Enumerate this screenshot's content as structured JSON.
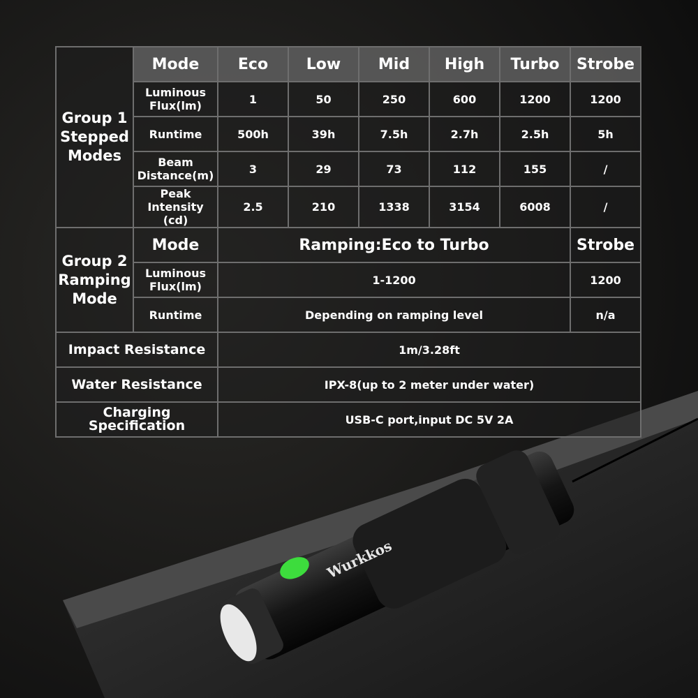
{
  "table": {
    "group1": {
      "title": "Group 1 Stepped Modes",
      "header": [
        "Mode",
        "Eco",
        "Low",
        "Mid",
        "High",
        "Turbo",
        "Strobe"
      ],
      "rows": [
        {
          "label": "Luminous Flux(lm)",
          "values": [
            "1",
            "50",
            "250",
            "600",
            "1200",
            "1200"
          ]
        },
        {
          "label": "Runtime",
          "values": [
            "500h",
            "39h",
            "7.5h",
            "2.7h",
            "2.5h",
            "5h"
          ]
        },
        {
          "label": "Beam Distance(m)",
          "values": [
            "3",
            "29",
            "73",
            "112",
            "155",
            "/"
          ]
        },
        {
          "label": "Peak Intensity (cd)",
          "values": [
            "2.5",
            "210",
            "1338",
            "3154",
            "6008",
            "/"
          ]
        }
      ]
    },
    "group2": {
      "title": "Group 2 Ramping Mode",
      "header": [
        "Mode",
        "Ramping:Eco to Turbo",
        "Strobe"
      ],
      "rows": [
        {
          "label": "Luminous Flux(lm)",
          "values": [
            "1-1200",
            "1200"
          ]
        },
        {
          "label": "Runtime",
          "values": [
            "Depending on ramping level",
            "n/a"
          ]
        }
      ]
    },
    "features": [
      {
        "label": "Impact Resistance",
        "value": "1m/3.28ft"
      },
      {
        "label": "Water Resistance",
        "value": "IPX-8(up to 2 meter under water)"
      },
      {
        "label": "Charging Specification",
        "value": "USB-C port,input DC 5V 2A"
      }
    ]
  },
  "product": {
    "brand_mark": "Wurkkos"
  },
  "colors": {
    "grid": "#6e6e6e",
    "header_bg": "#5f5f5f",
    "indicator": "#3ddc3d"
  }
}
